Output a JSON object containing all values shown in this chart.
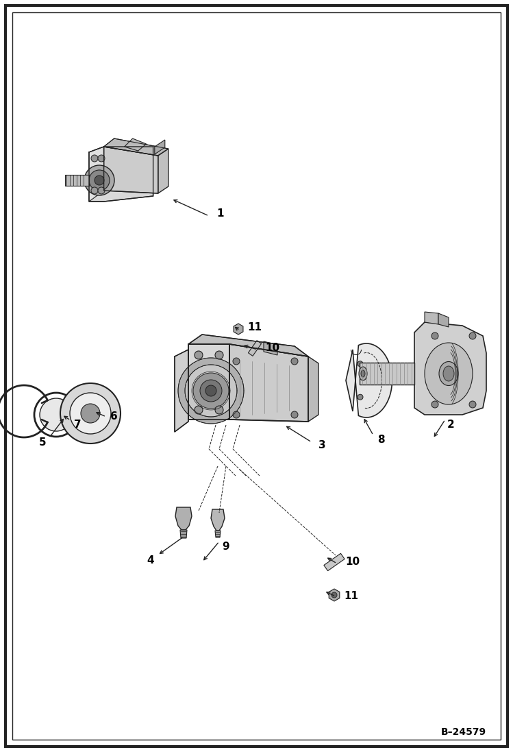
{
  "page_bg": "#ffffff",
  "border_color": "#000000",
  "line_color": "#222222",
  "text_color": "#000000",
  "footer_text": "B–24579",
  "figsize": [
    7.49,
    10.97
  ],
  "dpi": 100
}
